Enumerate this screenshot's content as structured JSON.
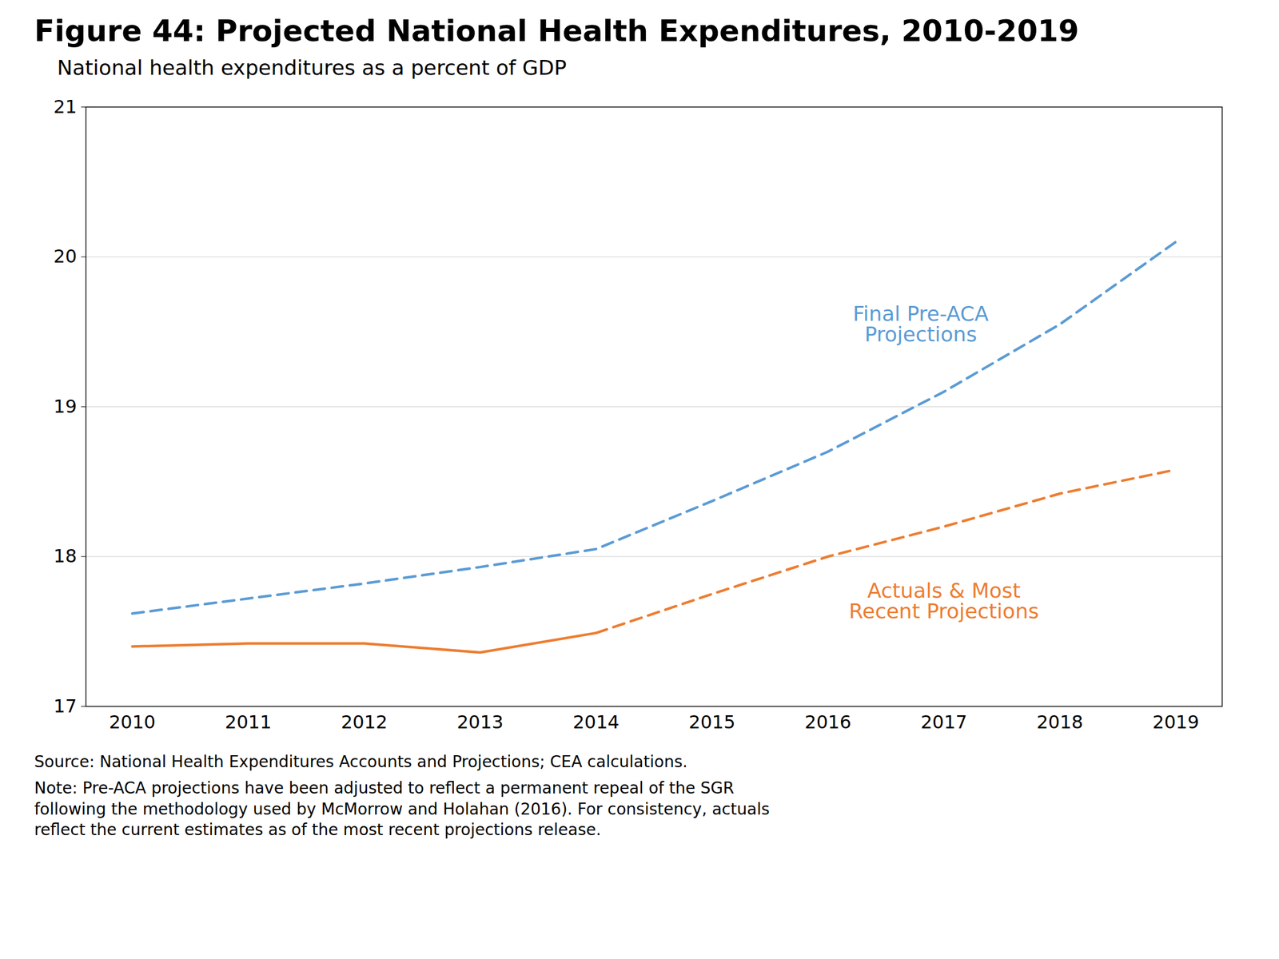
{
  "chart_data": {
    "type": "line",
    "title": "Figure 44: Projected National Health Expenditures, 2010-2019",
    "subtitle": "National health expenditures as a percent of GDP",
    "source": "Source: National Health Expenditures Accounts and Projections; CEA calculations.",
    "note": "Note: Pre-ACA projections have been adjusted to reflect a permanent repeal of the SGR\nfollowing the methodology used by McMorrow and Holahan (2016). For consistency, actuals\nreflect the current estimates as of the most recent projections release.",
    "xlim": [
      2009.6,
      2019.4
    ],
    "xticks": [
      2010,
      2011,
      2012,
      2013,
      2014,
      2015,
      2016,
      2017,
      2018,
      2019
    ],
    "ylim": [
      17.0,
      21.0
    ],
    "yticks": [
      17,
      18,
      19,
      20,
      21
    ],
    "grid": "y",
    "series": [
      {
        "x": [
          2010,
          2011,
          2012,
          2013,
          2014,
          2015,
          2016,
          2017,
          2018,
          2019
        ],
        "values": [
          17.62,
          17.72,
          17.82,
          17.93,
          18.05,
          18.37,
          18.7,
          19.1,
          19.55,
          20.1
        ],
        "color": "#5B9BD5",
        "line_style": "dashed"
      },
      {
        "x": [
          2010,
          2011,
          2012,
          2013,
          2014
        ],
        "values": [
          17.4,
          17.42,
          17.42,
          17.36,
          17.49
        ],
        "color": "#ED7D31",
        "line_style": "solid"
      },
      {
        "x": [
          2014,
          2015,
          2016,
          2017,
          2018,
          2019
        ],
        "values": [
          17.49,
          17.75,
          18.0,
          18.2,
          18.42,
          18.58
        ],
        "color": "#ED7D31",
        "line_style": "dashed"
      }
    ],
    "annotations": [
      {
        "text": "Final Pre-ACA\nProjections",
        "x": 2016.8,
        "y": 19.55,
        "color": "#5B9BD5"
      },
      {
        "text": "Actuals & Most\nRecent Projections",
        "x": 2017.0,
        "y": 17.7,
        "color": "#ED7D31"
      }
    ]
  }
}
